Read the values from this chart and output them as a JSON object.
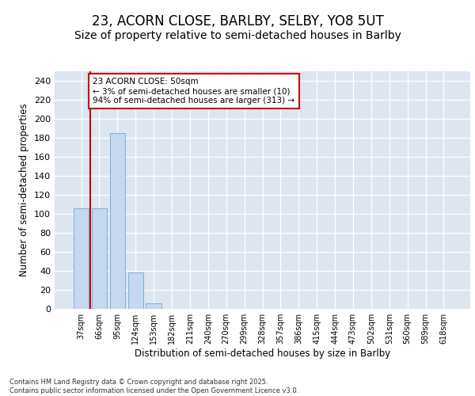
{
  "title1": "23, ACORN CLOSE, BARLBY, SELBY, YO8 5UT",
  "title2": "Size of property relative to semi-detached houses in Barlby",
  "xlabel": "Distribution of semi-detached houses by size in Barlby",
  "ylabel": "Number of semi-detached properties",
  "categories": [
    "37sqm",
    "66sqm",
    "95sqm",
    "124sqm",
    "153sqm",
    "182sqm",
    "211sqm",
    "240sqm",
    "270sqm",
    "299sqm",
    "328sqm",
    "357sqm",
    "386sqm",
    "415sqm",
    "444sqm",
    "473sqm",
    "502sqm",
    "531sqm",
    "560sqm",
    "589sqm",
    "618sqm"
  ],
  "values": [
    106,
    106,
    185,
    38,
    6,
    0,
    0,
    0,
    0,
    0,
    0,
    0,
    0,
    0,
    0,
    0,
    0,
    0,
    0,
    0,
    0
  ],
  "bar_color": "#c5d8f0",
  "bar_edge_color": "#7ab0d4",
  "annotation_text": "23 ACORN CLOSE: 50sqm\n← 3% of semi-detached houses are smaller (10)\n94% of semi-detached houses are larger (313) →",
  "annotation_box_color": "#ffffff",
  "annotation_edge_color": "#cc0000",
  "vline_color": "#cc0000",
  "ylim": [
    0,
    250
  ],
  "yticks": [
    0,
    20,
    40,
    60,
    80,
    100,
    120,
    140,
    160,
    180,
    200,
    220,
    240
  ],
  "background_color": "#dde6f0",
  "fig_background_color": "#ffffff",
  "footer": "Contains HM Land Registry data © Crown copyright and database right 2025.\nContains public sector information licensed under the Open Government Licence v3.0.",
  "title_fontsize": 12,
  "subtitle_fontsize": 10,
  "bar_width": 0.85,
  "vline_x_index": 0.5
}
